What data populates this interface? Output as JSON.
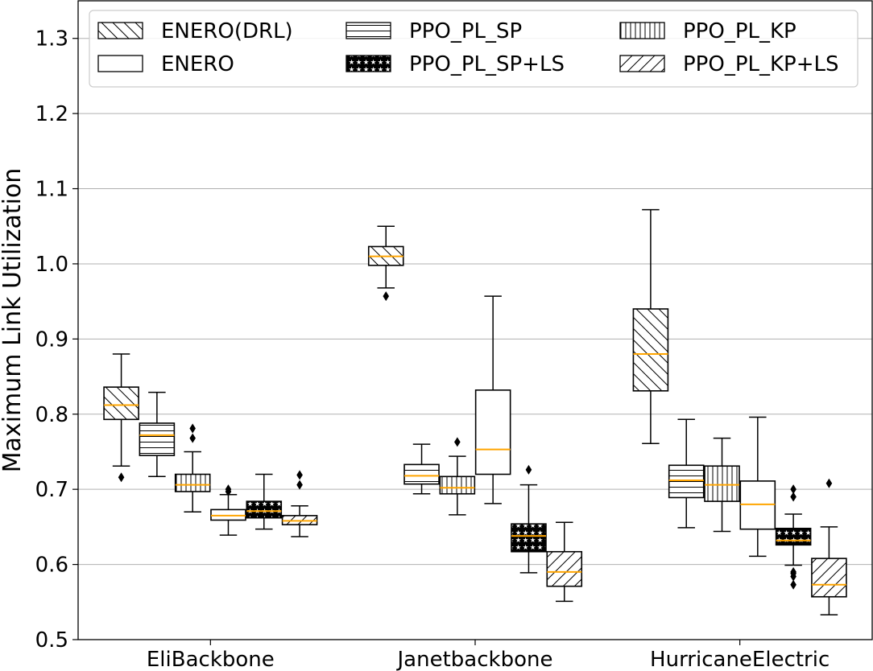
{
  "chart_data": {
    "type": "box",
    "title": "",
    "xlabel": "",
    "ylabel": "Maximum Link Utilization",
    "ylim": [
      0.5,
      1.35
    ],
    "yticks": [
      "0.5",
      "0.6",
      "0.7",
      "0.8",
      "0.9",
      "1.0",
      "1.1",
      "1.2",
      "1.3"
    ],
    "grid": "horizontal",
    "legend_position": "top",
    "median_color": "#ffa500",
    "categories": [
      "EliBackbone",
      "Janetbackbone",
      "HurricaneElectric"
    ],
    "series": [
      {
        "name": "ENERO(DRL)",
        "hatch": "backslash",
        "boxes": [
          {
            "whisker_low": 0.731,
            "q1": 0.793,
            "median": 0.812,
            "q3": 0.836,
            "whisker_high": 0.88,
            "fliers": [
              0.716
            ]
          },
          {
            "whisker_low": 0.968,
            "q1": 0.998,
            "median": 1.01,
            "q3": 1.023,
            "whisker_high": 1.05,
            "fliers": [
              0.957
            ]
          },
          {
            "whisker_low": 0.761,
            "q1": 0.831,
            "median": 0.88,
            "q3": 0.94,
            "whisker_high": 1.072,
            "fliers": []
          }
        ]
      },
      {
        "name": "PPO_PL_SP",
        "hatch": "horizontal",
        "boxes": [
          {
            "whisker_low": 0.717,
            "q1": 0.745,
            "median": 0.772,
            "q3": 0.788,
            "whisker_high": 0.829,
            "fliers": []
          },
          {
            "whisker_low": 0.694,
            "q1": 0.707,
            "median": 0.718,
            "q3": 0.733,
            "whisker_high": 0.76,
            "fliers": []
          },
          {
            "whisker_low": 0.649,
            "q1": 0.689,
            "median": 0.712,
            "q3": 0.732,
            "whisker_high": 0.793,
            "fliers": []
          }
        ]
      },
      {
        "name": "PPO_PL_KP",
        "hatch": "vertical",
        "boxes": [
          {
            "whisker_low": 0.67,
            "q1": 0.697,
            "median": 0.706,
            "q3": 0.72,
            "whisker_high": 0.75,
            "fliers": [
              0.768,
              0.781
            ]
          },
          {
            "whisker_low": 0.666,
            "q1": 0.694,
            "median": 0.702,
            "q3": 0.717,
            "whisker_high": 0.744,
            "fliers": [
              0.763
            ]
          },
          {
            "whisker_low": 0.644,
            "q1": 0.684,
            "median": 0.706,
            "q3": 0.731,
            "whisker_high": 0.768,
            "fliers": []
          }
        ]
      },
      {
        "name": "ENERO",
        "hatch": "none",
        "boxes": [
          {
            "whisker_low": 0.639,
            "q1": 0.659,
            "median": 0.665,
            "q3": 0.673,
            "whisker_high": 0.693,
            "fliers": [
              0.697,
              0.7
            ]
          },
          {
            "whisker_low": 0.681,
            "q1": 0.72,
            "median": 0.753,
            "q3": 0.832,
            "whisker_high": 0.957,
            "fliers": []
          },
          {
            "whisker_low": 0.611,
            "q1": 0.647,
            "median": 0.68,
            "q3": 0.711,
            "whisker_high": 0.796,
            "fliers": []
          }
        ]
      },
      {
        "name": "PPO_PL_SP+LS",
        "hatch": "stars",
        "boxes": [
          {
            "whisker_low": 0.647,
            "q1": 0.662,
            "median": 0.671,
            "q3": 0.684,
            "whisker_high": 0.72,
            "fliers": []
          },
          {
            "whisker_low": 0.589,
            "q1": 0.617,
            "median": 0.638,
            "q3": 0.654,
            "whisker_high": 0.706,
            "fliers": [
              0.726
            ]
          },
          {
            "whisker_low": 0.599,
            "q1": 0.626,
            "median": 0.632,
            "q3": 0.648,
            "whisker_high": 0.667,
            "fliers": [
              0.573,
              0.584,
              0.588,
              0.59,
              0.69,
              0.7
            ]
          }
        ]
      },
      {
        "name": "PPO_PL_KP+LS",
        "hatch": "slash",
        "boxes": [
          {
            "whisker_low": 0.637,
            "q1": 0.653,
            "median": 0.658,
            "q3": 0.665,
            "whisker_high": 0.678,
            "fliers": [
              0.706,
              0.719
            ]
          },
          {
            "whisker_low": 0.551,
            "q1": 0.571,
            "median": 0.59,
            "q3": 0.617,
            "whisker_high": 0.656,
            "fliers": []
          },
          {
            "whisker_low": 0.533,
            "q1": 0.557,
            "median": 0.573,
            "q3": 0.608,
            "whisker_high": 0.65,
            "fliers": [
              0.708
            ]
          }
        ]
      }
    ],
    "legend_order": [
      "ENERO(DRL)",
      "ENERO",
      "PPO_PL_SP",
      "PPO_PL_SP+LS",
      "PPO_PL_KP",
      "PPO_PL_KP+LS"
    ]
  }
}
